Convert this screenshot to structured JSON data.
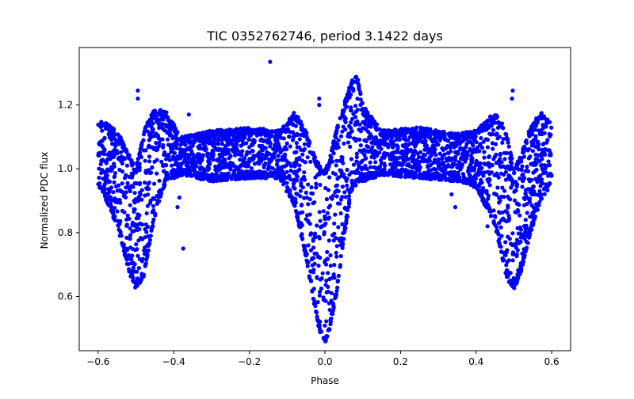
{
  "chart_data": {
    "type": "scatter",
    "title": "TIC 0352762746, period 3.1422 days",
    "xlabel": "Phase",
    "ylabel": "Normalized PDC flux",
    "xlim": [
      -0.65,
      0.65
    ],
    "ylim": [
      0.43,
      1.38
    ],
    "xticks": [
      -0.6,
      -0.4,
      -0.2,
      0.0,
      0.2,
      0.4,
      0.6
    ],
    "xtick_labels": [
      "−0.6",
      "−0.4",
      "−0.2",
      "0.0",
      "0.2",
      "0.4",
      "0.6"
    ],
    "yticks": [
      0.6,
      0.8,
      1.0,
      1.2
    ],
    "ytick_labels": [
      "0.6",
      "0.8",
      "1.0",
      "1.2"
    ],
    "grid": false,
    "marker_color": "#0000ff",
    "x_range_of_data": [
      -0.6,
      0.6
    ],
    "envelope": {
      "x": [
        -0.6,
        -0.57,
        -0.54,
        -0.52,
        -0.5,
        -0.48,
        -0.45,
        -0.42,
        -0.38,
        -0.3,
        -0.2,
        -0.12,
        -0.08,
        -0.05,
        -0.03,
        -0.01,
        0.0,
        0.01,
        0.03,
        0.05,
        0.07,
        0.085,
        0.1,
        0.15,
        0.25,
        0.35,
        0.4,
        0.45,
        0.48,
        0.5,
        0.52,
        0.54,
        0.57,
        0.6
      ],
      "upper": [
        1.15,
        1.14,
        1.1,
        1.05,
        1.0,
        1.12,
        1.19,
        1.18,
        1.1,
        1.12,
        1.13,
        1.12,
        1.18,
        1.12,
        1.05,
        1.0,
        1.0,
        1.02,
        1.12,
        1.2,
        1.28,
        1.3,
        1.2,
        1.12,
        1.13,
        1.11,
        1.12,
        1.18,
        1.12,
        1.0,
        1.05,
        1.12,
        1.18,
        1.14
      ],
      "lower": [
        0.95,
        0.88,
        0.78,
        0.68,
        0.62,
        0.66,
        0.85,
        0.96,
        0.98,
        0.96,
        0.97,
        0.97,
        0.88,
        0.72,
        0.58,
        0.47,
        0.45,
        0.48,
        0.6,
        0.78,
        0.93,
        0.95,
        0.96,
        0.98,
        0.97,
        0.96,
        0.94,
        0.82,
        0.66,
        0.62,
        0.68,
        0.78,
        0.9,
        0.95
      ]
    },
    "outliers": [
      {
        "x": -0.145,
        "y": 1.335
      },
      {
        "x": -0.495,
        "y": 1.245
      },
      {
        "x": 0.497,
        "y": 1.245
      },
      {
        "x": -0.495,
        "y": 1.22
      },
      {
        "x": 0.495,
        "y": 1.22
      },
      {
        "x": -0.015,
        "y": 1.22
      },
      {
        "x": -0.015,
        "y": 1.2
      },
      {
        "x": -0.36,
        "y": 1.17
      },
      {
        "x": -0.375,
        "y": 0.75
      },
      {
        "x": -0.385,
        "y": 0.91
      },
      {
        "x": -0.39,
        "y": 0.88
      },
      {
        "x": 0.345,
        "y": 0.88
      },
      {
        "x": 0.335,
        "y": 0.92
      },
      {
        "x": 0.43,
        "y": 0.82
      },
      {
        "x": 0.42,
        "y": 0.93
      }
    ]
  }
}
